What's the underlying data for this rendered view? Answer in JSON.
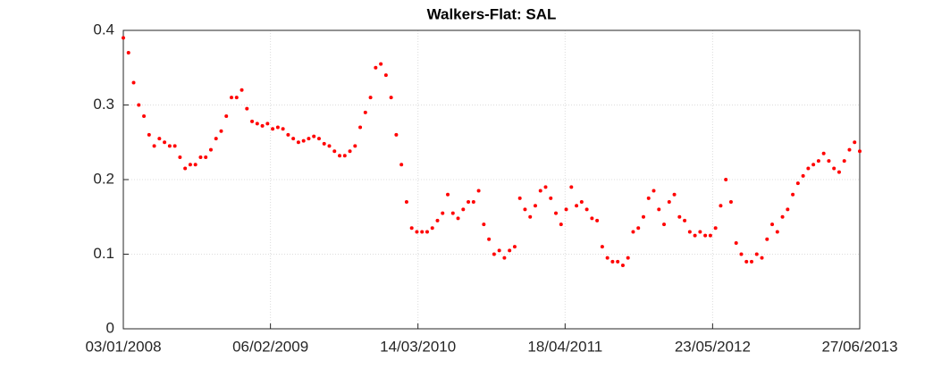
{
  "chart_data": {
    "type": "scatter",
    "title": "Walkers-Flat: SAL",
    "color": "#ff0000",
    "grid": true,
    "xlim": [
      "2008-01-03",
      "2013-06-27"
    ],
    "xticks": [
      {
        "value": "2008-01-03",
        "label": "03/01/2008"
      },
      {
        "value": "2009-02-06",
        "label": "06/02/2009"
      },
      {
        "value": "2010-03-14",
        "label": "14/03/2010"
      },
      {
        "value": "2011-04-18",
        "label": "18/04/2011"
      },
      {
        "value": "2012-05-23",
        "label": "23/05/2012"
      },
      {
        "value": "2013-06-27",
        "label": "27/06/2013"
      }
    ],
    "ylim": [
      0,
      0.4
    ],
    "yticks": [
      0,
      0.1,
      0.2,
      0.3,
      0.4
    ],
    "x": [
      "2008-01-03",
      "2008-01-17",
      "2008-01-31",
      "2008-02-14",
      "2008-02-28",
      "2008-03-13",
      "2008-03-27",
      "2008-04-10",
      "2008-04-24",
      "2008-05-08",
      "2008-05-22",
      "2008-06-05",
      "2008-06-19",
      "2008-07-03",
      "2008-07-17",
      "2008-07-31",
      "2008-08-14",
      "2008-08-28",
      "2008-09-11",
      "2008-09-25",
      "2008-10-09",
      "2008-10-23",
      "2008-11-06",
      "2008-11-20",
      "2008-12-04",
      "2008-12-18",
      "2009-01-01",
      "2009-01-15",
      "2009-01-29",
      "2009-02-12",
      "2009-02-26",
      "2009-03-12",
      "2009-03-26",
      "2009-04-09",
      "2009-04-23",
      "2009-05-07",
      "2009-05-21",
      "2009-06-04",
      "2009-06-18",
      "2009-07-02",
      "2009-07-16",
      "2009-07-30",
      "2009-08-13",
      "2009-08-27",
      "2009-09-10",
      "2009-09-24",
      "2009-10-08",
      "2009-10-22",
      "2009-11-05",
      "2009-11-19",
      "2009-12-03",
      "2009-12-17",
      "2009-12-31",
      "2010-01-14",
      "2010-01-28",
      "2010-02-11",
      "2010-02-25",
      "2010-03-11",
      "2010-03-25",
      "2010-04-08",
      "2010-04-22",
      "2010-05-06",
      "2010-05-20",
      "2010-06-03",
      "2010-06-17",
      "2010-07-01",
      "2010-07-15",
      "2010-07-29",
      "2010-08-12",
      "2010-08-26",
      "2010-09-09",
      "2010-09-23",
      "2010-10-07",
      "2010-10-21",
      "2010-11-04",
      "2010-11-18",
      "2010-12-02",
      "2010-12-16",
      "2010-12-30",
      "2011-01-13",
      "2011-01-27",
      "2011-02-10",
      "2011-02-24",
      "2011-03-10",
      "2011-03-24",
      "2011-04-07",
      "2011-04-21",
      "2011-05-05",
      "2011-05-19",
      "2011-06-02",
      "2011-06-16",
      "2011-06-30",
      "2011-07-14",
      "2011-07-28",
      "2011-08-11",
      "2011-08-25",
      "2011-09-08",
      "2011-09-22",
      "2011-10-06",
      "2011-10-20",
      "2011-11-03",
      "2011-11-17",
      "2011-12-01",
      "2011-12-15",
      "2011-12-29",
      "2012-01-12",
      "2012-01-26",
      "2012-02-09",
      "2012-02-23",
      "2012-03-08",
      "2012-03-22",
      "2012-04-05",
      "2012-04-19",
      "2012-05-03",
      "2012-05-17",
      "2012-05-31",
      "2012-06-14",
      "2012-06-28",
      "2012-07-12",
      "2012-07-26",
      "2012-08-09",
      "2012-08-23",
      "2012-09-06",
      "2012-09-20",
      "2012-10-04",
      "2012-10-18",
      "2012-11-01",
      "2012-11-15",
      "2012-11-29",
      "2012-12-13",
      "2012-12-27",
      "2013-01-10",
      "2013-01-24",
      "2013-02-07",
      "2013-02-21",
      "2013-03-07",
      "2013-03-21",
      "2013-04-04",
      "2013-04-18",
      "2013-05-02",
      "2013-05-16",
      "2013-05-30",
      "2013-06-13",
      "2013-06-27"
    ],
    "values": [
      0.39,
      0.37,
      0.33,
      0.3,
      0.285,
      0.26,
      0.245,
      0.255,
      0.25,
      0.245,
      0.245,
      0.23,
      0.215,
      0.22,
      0.22,
      0.23,
      0.23,
      0.24,
      0.255,
      0.265,
      0.285,
      0.31,
      0.31,
      0.32,
      0.295,
      0.278,
      0.275,
      0.272,
      0.275,
      0.268,
      0.27,
      0.268,
      0.26,
      0.255,
      0.25,
      0.252,
      0.255,
      0.258,
      0.255,
      0.248,
      0.245,
      0.238,
      0.232,
      0.232,
      0.238,
      0.245,
      0.27,
      0.29,
      0.31,
      0.35,
      0.355,
      0.34,
      0.31,
      0.26,
      0.22,
      0.17,
      0.135,
      0.13,
      0.13,
      0.13,
      0.135,
      0.145,
      0.155,
      0.18,
      0.155,
      0.148,
      0.16,
      0.17,
      0.17,
      0.185,
      0.14,
      0.12,
      0.1,
      0.105,
      0.095,
      0.105,
      0.11,
      0.175,
      0.16,
      0.15,
      0.165,
      0.185,
      0.19,
      0.175,
      0.155,
      0.14,
      0.16,
      0.19,
      0.165,
      0.17,
      0.16,
      0.148,
      0.145,
      0.11,
      0.095,
      0.09,
      0.09,
      0.085,
      0.095,
      0.13,
      0.135,
      0.15,
      0.175,
      0.185,
      0.16,
      0.14,
      0.17,
      0.18,
      0.15,
      0.145,
      0.13,
      0.125,
      0.13,
      0.125,
      0.125,
      0.135,
      0.165,
      0.2,
      0.17,
      0.115,
      0.1,
      0.09,
      0.09,
      0.1,
      0.095,
      0.12,
      0.14,
      0.13,
      0.15,
      0.16,
      0.18,
      0.195,
      0.205,
      0.215,
      0.22,
      0.225,
      0.235,
      0.225,
      0.215,
      0.21,
      0.225,
      0.24,
      0.25,
      0.238
    ]
  }
}
